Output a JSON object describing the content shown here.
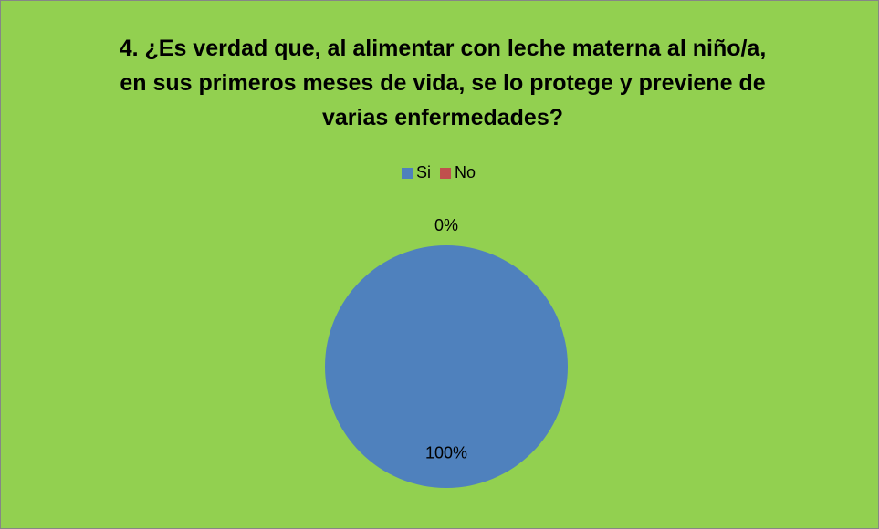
{
  "chart_data": {
    "type": "pie",
    "title": "4. ¿Es verdad que, al alimentar con leche materna al niño/a, en sus primeros meses de vida, se lo protege y previene de varias enfermedades?",
    "categories": [
      "Si",
      "No"
    ],
    "values": [
      100,
      0
    ],
    "value_labels": [
      "100%",
      "0%"
    ],
    "colors": [
      "#4f81bd",
      "#c0504d"
    ],
    "legend": "top"
  }
}
